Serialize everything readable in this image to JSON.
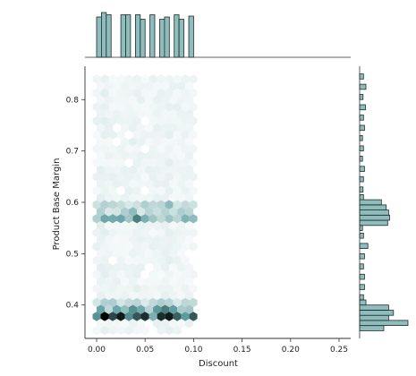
{
  "chart_data": {
    "type": "hexbin-joint",
    "xlabel": "Discount",
    "ylabel": "Product Base Margin",
    "xlim": [
      -0.012,
      0.262
    ],
    "ylim": [
      0.335,
      0.865
    ],
    "x_ticks": [
      {
        "value": 0.0,
        "label": "0.00"
      },
      {
        "value": 0.05,
        "label": "0.05"
      },
      {
        "value": 0.1,
        "label": "0.10"
      },
      {
        "value": 0.15,
        "label": "0.15"
      },
      {
        "value": 0.2,
        "label": "0.20"
      },
      {
        "value": 0.25,
        "label": "0.25"
      }
    ],
    "y_ticks": [
      {
        "value": 0.4,
        "label": "0.4"
      },
      {
        "value": 0.5,
        "label": "0.5"
      },
      {
        "value": 0.6,
        "label": "0.6"
      },
      {
        "value": 0.7,
        "label": "0.7"
      },
      {
        "value": 0.8,
        "label": "0.8"
      }
    ],
    "color_scale": {
      "low": "#ffffff",
      "high": "#000000",
      "base": "#5f9ea0"
    },
    "hex": {
      "x_range": [
        0.0,
        0.1
      ],
      "y_range": [
        0.35,
        0.84
      ],
      "density_rows": [
        {
          "y": 0.375,
          "d": 0.85
        },
        {
          "y": 0.385,
          "d": 0.55
        },
        {
          "y": 0.39,
          "d": 0.45
        },
        {
          "y": 0.405,
          "d": 0.25
        },
        {
          "y": 0.565,
          "d": 0.5
        },
        {
          "y": 0.575,
          "d": 0.55
        },
        {
          "y": 0.585,
          "d": 0.35
        },
        {
          "y": 0.595,
          "d": 0.25
        },
        {
          "y": 0.6,
          "d": 0.2
        }
      ],
      "base_density": 0.06
    },
    "top_marginal": {
      "type": "histogram",
      "bins": [
        {
          "x0": 0.0,
          "x1": 0.005,
          "count": 0.9
        },
        {
          "x0": 0.005,
          "x1": 0.01,
          "count": 1.0
        },
        {
          "x0": 0.01,
          "x1": 0.015,
          "count": 0.95
        },
        {
          "x0": 0.015,
          "x1": 0.02,
          "count": 0.0
        },
        {
          "x0": 0.02,
          "x1": 0.025,
          "count": 0.0
        },
        {
          "x0": 0.025,
          "x1": 0.03,
          "count": 0.95
        },
        {
          "x0": 0.03,
          "x1": 0.035,
          "count": 0.95
        },
        {
          "x0": 0.035,
          "x1": 0.04,
          "count": 0.0
        },
        {
          "x0": 0.04,
          "x1": 0.045,
          "count": 0.95
        },
        {
          "x0": 0.045,
          "x1": 0.05,
          "count": 0.85
        },
        {
          "x0": 0.05,
          "x1": 0.055,
          "count": 0.0
        },
        {
          "x0": 0.055,
          "x1": 0.06,
          "count": 0.95
        },
        {
          "x0": 0.06,
          "x1": 0.065,
          "count": 0.0
        },
        {
          "x0": 0.065,
          "x1": 0.07,
          "count": 0.85
        },
        {
          "x0": 0.07,
          "x1": 0.075,
          "count": 0.9
        },
        {
          "x0": 0.075,
          "x1": 0.08,
          "count": 0.0
        },
        {
          "x0": 0.08,
          "x1": 0.085,
          "count": 0.95
        },
        {
          "x0": 0.085,
          "x1": 0.09,
          "count": 0.85
        },
        {
          "x0": 0.09,
          "x1": 0.095,
          "count": 0.0
        },
        {
          "x0": 0.095,
          "x1": 0.1,
          "count": 0.92
        }
      ]
    },
    "right_marginal": {
      "type": "histogram",
      "bins": [
        {
          "y0": 0.35,
          "y1": 0.36,
          "count": 0.5
        },
        {
          "y0": 0.36,
          "y1": 0.37,
          "count": 1.0
        },
        {
          "y0": 0.37,
          "y1": 0.38,
          "count": 0.6
        },
        {
          "y0": 0.38,
          "y1": 0.39,
          "count": 0.7
        },
        {
          "y0": 0.39,
          "y1": 0.4,
          "count": 0.6
        },
        {
          "y0": 0.4,
          "y1": 0.41,
          "count": 0.13
        },
        {
          "y0": 0.41,
          "y1": 0.42,
          "count": 0.08
        },
        {
          "y0": 0.43,
          "y1": 0.44,
          "count": 0.1
        },
        {
          "y0": 0.45,
          "y1": 0.46,
          "count": 0.1
        },
        {
          "y0": 0.47,
          "y1": 0.48,
          "count": 0.08
        },
        {
          "y0": 0.49,
          "y1": 0.5,
          "count": 0.1
        },
        {
          "y0": 0.51,
          "y1": 0.52,
          "count": 0.17
        },
        {
          "y0": 0.53,
          "y1": 0.54,
          "count": 0.08
        },
        {
          "y0": 0.545,
          "y1": 0.555,
          "count": 0.06
        },
        {
          "y0": 0.555,
          "y1": 0.565,
          "count": 0.58
        },
        {
          "y0": 0.565,
          "y1": 0.575,
          "count": 0.62
        },
        {
          "y0": 0.575,
          "y1": 0.585,
          "count": 0.6
        },
        {
          "y0": 0.585,
          "y1": 0.595,
          "count": 0.55
        },
        {
          "y0": 0.595,
          "y1": 0.605,
          "count": 0.45
        },
        {
          "y0": 0.605,
          "y1": 0.615,
          "count": 0.08
        },
        {
          "y0": 0.62,
          "y1": 0.63,
          "count": 0.07
        },
        {
          "y0": 0.64,
          "y1": 0.65,
          "count": 0.08
        },
        {
          "y0": 0.66,
          "y1": 0.67,
          "count": 0.1
        },
        {
          "y0": 0.68,
          "y1": 0.69,
          "count": 0.06
        },
        {
          "y0": 0.7,
          "y1": 0.71,
          "count": 0.08
        },
        {
          "y0": 0.72,
          "y1": 0.73,
          "count": 0.06
        },
        {
          "y0": 0.74,
          "y1": 0.75,
          "count": 0.1
        },
        {
          "y0": 0.76,
          "y1": 0.77,
          "count": 0.08
        },
        {
          "y0": 0.78,
          "y1": 0.79,
          "count": 0.12
        },
        {
          "y0": 0.8,
          "y1": 0.81,
          "count": 0.07
        },
        {
          "y0": 0.82,
          "y1": 0.83,
          "count": 0.13
        },
        {
          "y0": 0.84,
          "y1": 0.85,
          "count": 0.08
        }
      ]
    },
    "grid": false,
    "legend": "none"
  }
}
